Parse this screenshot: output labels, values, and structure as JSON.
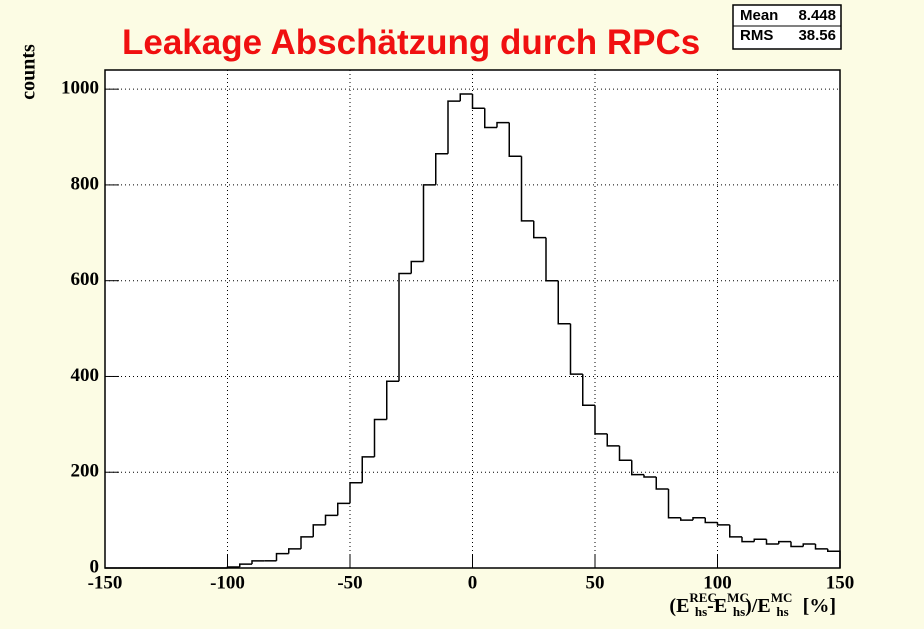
{
  "chart_data": {
    "type": "histogram",
    "title": "Leakage Abschätzung durch RPCs",
    "y_label": "counts",
    "x_label_parts": [
      "(E",
      "REC",
      "hs",
      "-E",
      "MC",
      "hs",
      ")/E",
      "MC",
      "hs",
      "[%]"
    ],
    "stats": [
      {
        "label": "Mean",
        "value": "8.448"
      },
      {
        "label": "RMS",
        "value": "38.56"
      }
    ],
    "bins": [
      -150,
      -145,
      -140,
      -135,
      -130,
      -125,
      -120,
      -115,
      -110,
      -105,
      -100,
      -95,
      -90,
      -85,
      -80,
      -75,
      -70,
      -65,
      -60,
      -55,
      -50,
      -45,
      -40,
      -35,
      -30,
      -25,
      -20,
      -15,
      -10,
      -5,
      0,
      5,
      10,
      15,
      20,
      25,
      30,
      35,
      40,
      45,
      50,
      55,
      60,
      65,
      70,
      75,
      80,
      85,
      90,
      95,
      100,
      105,
      110,
      115,
      120,
      125,
      130,
      135,
      140,
      145,
      150
    ],
    "values": [
      0,
      0,
      0,
      0,
      0,
      0,
      0,
      0,
      0,
      0,
      2,
      8,
      15,
      15,
      30,
      40,
      65,
      90,
      110,
      135,
      178,
      232,
      310,
      390,
      615,
      640,
      800,
      865,
      975,
      990,
      960,
      920,
      930,
      860,
      725,
      690,
      600,
      510,
      405,
      340,
      280,
      255,
      225,
      195,
      190,
      165,
      105,
      100,
      105,
      95,
      90,
      65,
      55,
      60,
      50,
      55,
      45,
      50,
      40,
      35
    ],
    "color": "#000000",
    "xlim": [
      -150,
      150
    ],
    "xticks": [
      -150,
      -100,
      -50,
      0,
      50,
      100,
      150
    ],
    "ylim": [
      0,
      1040
    ],
    "yticks": [
      0,
      200,
      400,
      600,
      800,
      1000
    ],
    "grid": true
  }
}
